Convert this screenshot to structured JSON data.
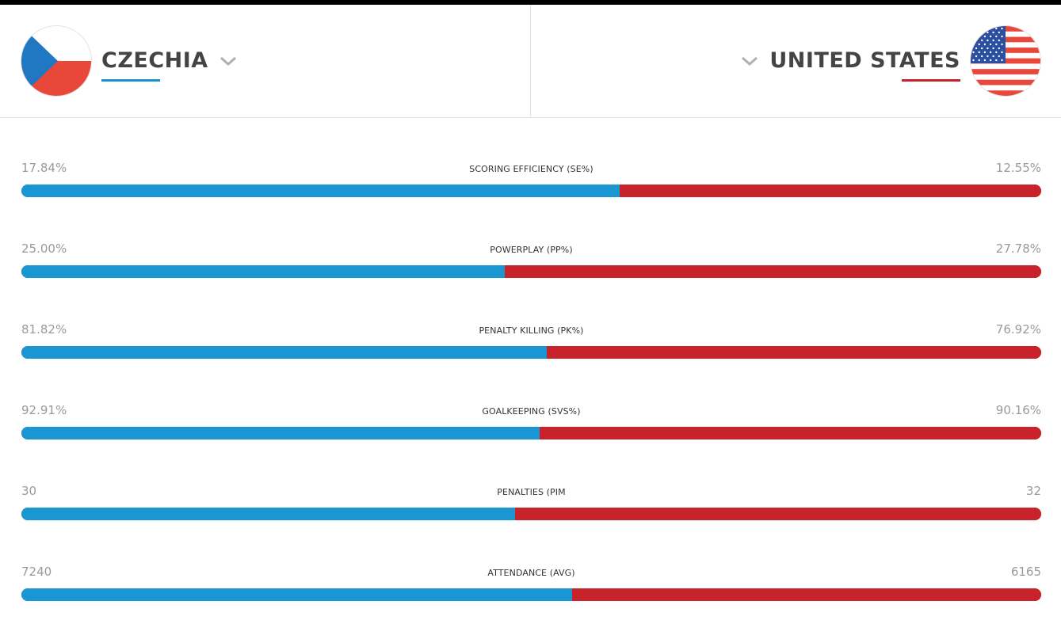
{
  "header": {
    "left_team": {
      "name": "CZECHIA",
      "flag": "czech-flag",
      "accent": "#1a91d1"
    },
    "right_team": {
      "name": "UNITED STATES",
      "flag": "us-flag",
      "accent": "#c8222a"
    }
  },
  "colors": {
    "left_bar": "#1a96d3",
    "right_bar": "#c8222a"
  },
  "stats": [
    {
      "label": "SCORING EFFICIENCY (SE%)",
      "left": "17.84%",
      "right": "12.55%",
      "left_share": 0.587
    },
    {
      "label": "POWERPLAY (PP%)",
      "left": "25.00%",
      "right": "27.78%",
      "left_share": 0.474
    },
    {
      "label": "PENALTY KILLING (PK%)",
      "left": "81.82%",
      "right": "76.92%",
      "left_share": 0.515
    },
    {
      "label": "GOALKEEPING (SVS%)",
      "left": "92.91%",
      "right": "90.16%",
      "left_share": 0.508
    },
    {
      "label": "PENALTIES (PIM",
      "left": "30",
      "right": "32",
      "left_share": 0.484
    },
    {
      "label": "ATTENDANCE (AVG)",
      "left": "7240",
      "right": "6165",
      "left_share": 0.54
    }
  ]
}
